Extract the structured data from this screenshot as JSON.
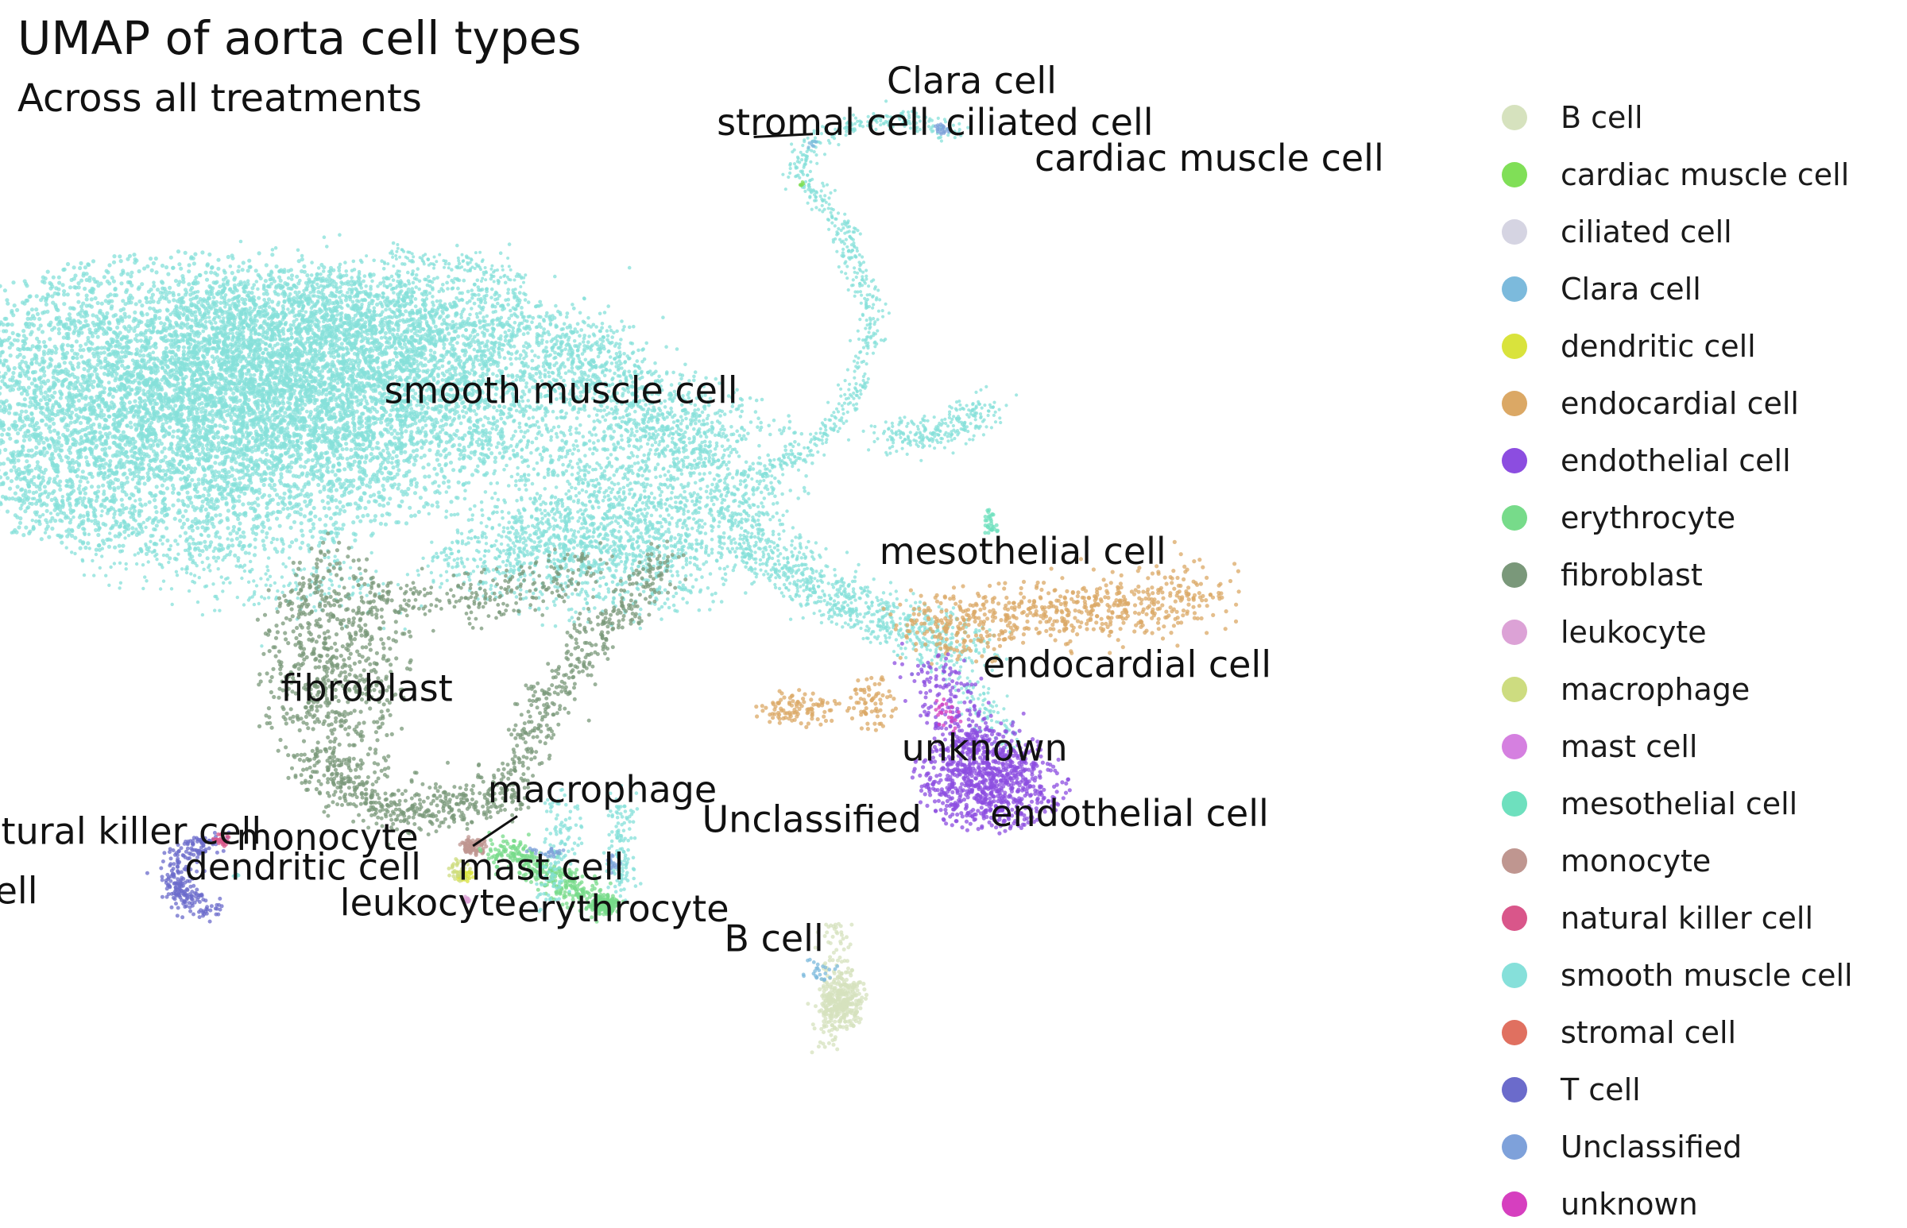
{
  "chart_data": {
    "type": "scatter",
    "title": "UMAP of aorta cell types",
    "subtitle": "Across all treatments",
    "xlabel": "",
    "ylabel": "",
    "grid": false,
    "legend_position": "right",
    "xlim": [
      -10,
      10
    ],
    "ylim": [
      -10,
      10
    ],
    "series": [
      {
        "name": "B cell",
        "color": "#d6e2be"
      },
      {
        "name": "cardiac muscle cell",
        "color": "#80df57"
      },
      {
        "name": "ciliated cell",
        "color": "#d5d4e2"
      },
      {
        "name": "Clara cell",
        "color": "#7cbadc"
      },
      {
        "name": "dendritic cell",
        "color": "#d9e33c"
      },
      {
        "name": "endocardial cell",
        "color": "#dba865"
      },
      {
        "name": "endothelial cell",
        "color": "#8c4de0"
      },
      {
        "name": "erythrocyte",
        "color": "#77db8a"
      },
      {
        "name": "fibroblast",
        "color": "#7a987a"
      },
      {
        "name": "leukocyte",
        "color": "#dca2d6"
      },
      {
        "name": "macrophage",
        "color": "#cddc80"
      },
      {
        "name": "mast cell",
        "color": "#d580e0"
      },
      {
        "name": "mesothelial cell",
        "color": "#6ee0be"
      },
      {
        "name": "monocyte",
        "color": "#bf9690"
      },
      {
        "name": "natural killer cell",
        "color": "#d9568a"
      },
      {
        "name": "smooth muscle cell",
        "color": "#86e0da"
      },
      {
        "name": "stromal cell",
        "color": "#e07060"
      },
      {
        "name": "T cell",
        "color": "#6b6bcb"
      },
      {
        "name": "Unclassified",
        "color": "#7ea1da"
      },
      {
        "name": "unknown",
        "color": "#d63fbf"
      }
    ],
    "cluster_labels": [
      {
        "text": "Clara cell",
        "x": 2.0,
        "y": 8.6
      },
      {
        "text": "stromal cell",
        "x": -0.3,
        "y": 7.9
      },
      {
        "text": "ciliated cell",
        "x": 2.8,
        "y": 7.9
      },
      {
        "text": "cardiac muscle cell",
        "x": 4.0,
        "y": 7.3
      },
      {
        "text": "smooth muscle cell",
        "x": -4.8,
        "y": 3.4
      },
      {
        "text": "mesothelial cell",
        "x": 1.9,
        "y": 0.7
      },
      {
        "text": "endocardial cell",
        "x": 3.3,
        "y": -1.2
      },
      {
        "text": "fibroblast",
        "x": -6.2,
        "y": -1.6
      },
      {
        "text": "unknown",
        "x": 2.2,
        "y": -2.6
      },
      {
        "text": "macrophage",
        "x": -3.4,
        "y": -3.3
      },
      {
        "text": "endothelial cell",
        "x": 3.4,
        "y": -3.7
      },
      {
        "text": "Unclassified",
        "x": -0.5,
        "y": -3.8
      },
      {
        "text": "natural killer cell",
        "x": -10.6,
        "y": -4.0
      },
      {
        "text": "monocyte",
        "x": -6.8,
        "y": -4.1
      },
      {
        "text": "dendritic cell",
        "x": -7.5,
        "y": -4.6
      },
      {
        "text": "mast cell",
        "x": -3.8,
        "y": -4.6
      },
      {
        "text": "T cell",
        "x": -10.8,
        "y": -5.0
      },
      {
        "text": "leukocyte",
        "x": -5.4,
        "y": -5.2
      },
      {
        "text": "erythrocyte",
        "x": -3.0,
        "y": -5.3
      },
      {
        "text": "B cell",
        "x": -0.2,
        "y": -5.8
      }
    ]
  }
}
